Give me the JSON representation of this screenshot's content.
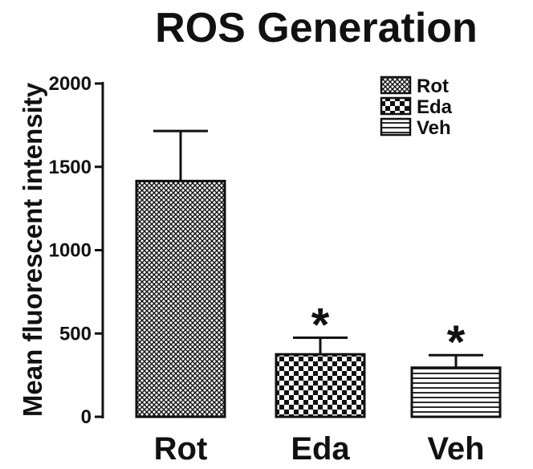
{
  "chart_data": {
    "type": "bar",
    "title": "ROS Generation",
    "xlabel": "",
    "ylabel": "Mean fluorescent intensity",
    "categories": [
      "Rot",
      "Eda",
      "Veh"
    ],
    "values": [
      1415,
      375,
      295
    ],
    "error_upper": [
      1715,
      475,
      370
    ],
    "significance": [
      "",
      "*",
      "*"
    ],
    "ylim": [
      0,
      2000
    ],
    "yticks": [
      0,
      500,
      1000,
      1500,
      2000
    ],
    "ytick_labels": [
      "0",
      "500",
      "1000",
      "1500",
      "2000"
    ],
    "grid": false,
    "legend_position": "top-right",
    "legend": [
      {
        "label": "Rot",
        "pattern": "crosshatch-fine"
      },
      {
        "label": "Eda",
        "pattern": "checkerboard"
      },
      {
        "label": "Veh",
        "pattern": "horizontal-lines"
      }
    ],
    "colors": {
      "ink": "#111111",
      "background": "#ffffff"
    }
  }
}
